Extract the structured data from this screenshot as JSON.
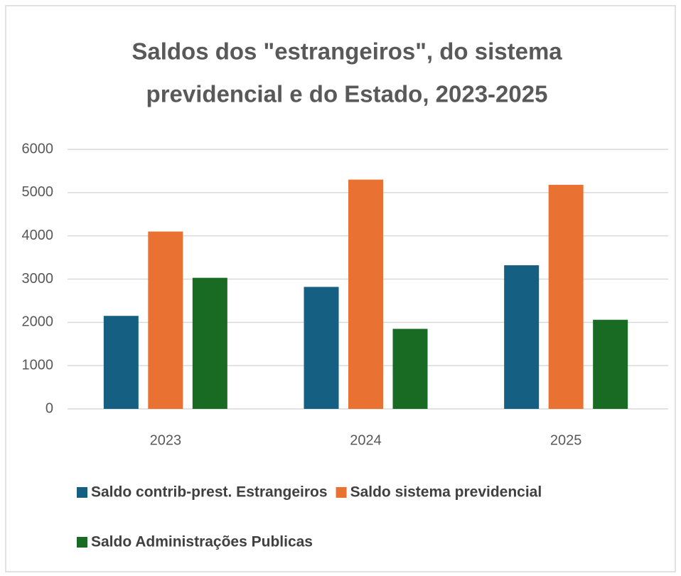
{
  "chart_data": {
    "type": "bar",
    "title": [
      "Saldos dos \"estrangeiros\", do sistema",
      "previdencial e do Estado, 2023-2025"
    ],
    "categories": [
      "2023",
      "2024",
      "2025"
    ],
    "series": [
      {
        "name": "Saldo contrib-prest. Estrangeiros",
        "color": "#156082",
        "values": [
          2150,
          2820,
          3320
        ]
      },
      {
        "name": "Saldo sistema previdencial",
        "color": "#e97132",
        "values": [
          4100,
          5300,
          5180
        ]
      },
      {
        "name": "Saldo Administrações Publicas",
        "color": "#196b24",
        "values": [
          3030,
          1850,
          2060
        ]
      }
    ],
    "ylim": [
      0,
      6000
    ],
    "yticks": [
      0,
      1000,
      2000,
      3000,
      4000,
      5000,
      6000
    ],
    "grid": true,
    "legend": "bottom"
  }
}
